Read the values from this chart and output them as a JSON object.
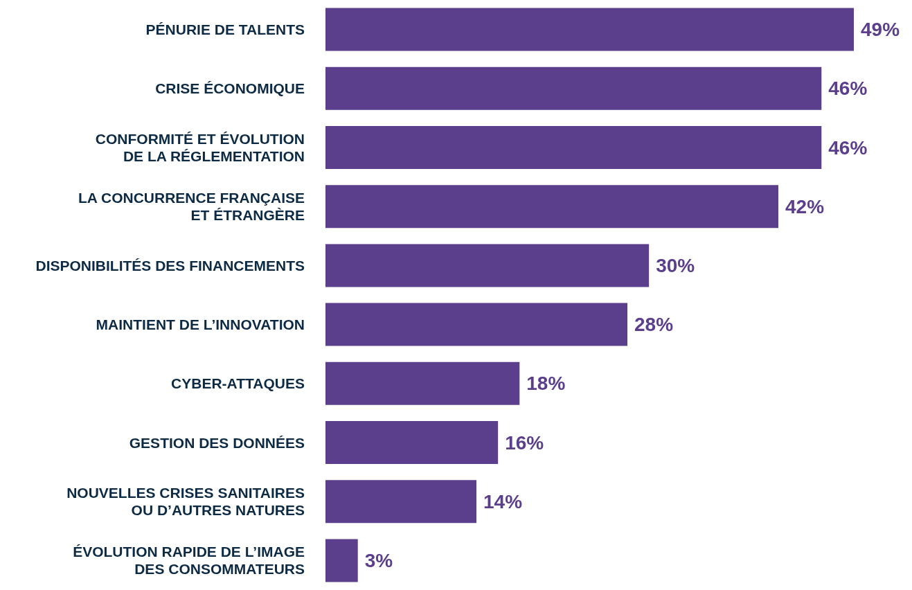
{
  "chart_data": {
    "type": "bar",
    "orientation": "horizontal",
    "categories": [
      "PÉNURIE DE TALENTS",
      "CRISE ÉCONOMIQUE",
      "CONFORMITÉ ET ÉVOLUTION\nDE LA RÉGLEMENTATION",
      "LA CONCURRENCE FRANÇAISE\nET ÉTRANGÈRE",
      "DISPONIBILITÉS DES FINANCEMENTS",
      "MAINTIENT DE L’INNOVATION",
      "CYBER-ATTAQUES",
      "GESTION DES DONNÉES",
      "NOUVELLES CRISES SANITAIRES\nOU D’AUTRES NATURES",
      "ÉVOLUTION RAPIDE DE L’IMAGE\nDES CONSOMMATEURS"
    ],
    "values": [
      49,
      46,
      46,
      42,
      30,
      28,
      18,
      16,
      14,
      3
    ],
    "value_labels": [
      "49%",
      "46%",
      "46%",
      "42%",
      "30%",
      "28%",
      "18%",
      "16%",
      "14%",
      "3%"
    ],
    "color": "#5c3f8c"
  }
}
